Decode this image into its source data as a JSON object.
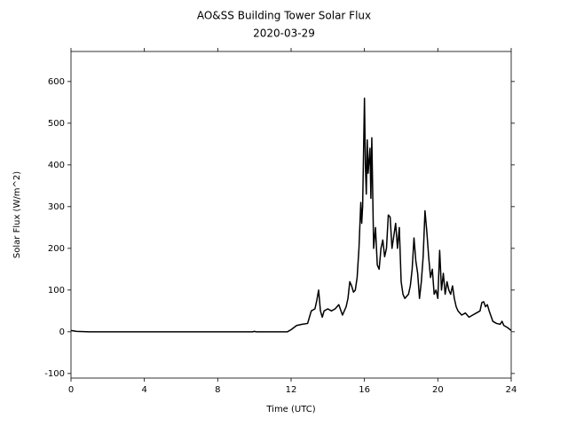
{
  "chart_data": {
    "type": "line",
    "title": "AO&SS Building Tower Solar Flux",
    "subtitle": "2020-03-29",
    "x_label": "Time (UTC)",
    "y_label": "Solar Flux (W/m^2)",
    "xlim": [
      0,
      24
    ],
    "xticks": [
      0,
      4,
      8,
      12,
      16,
      20,
      24
    ],
    "ylim": [
      -111,
      672
    ],
    "yticks": [
      -100,
      0,
      100,
      200,
      300,
      400,
      500,
      600
    ],
    "grid": false,
    "series": [
      {
        "name": "Solar Flux",
        "color": "#000000",
        "x": [
          0,
          0.3,
          1,
          3,
          5,
          7,
          9,
          9.9,
          10,
          10.1,
          11,
          11.8,
          12,
          12.3,
          12.6,
          12.9,
          13,
          13.1,
          13.3,
          13.4,
          13.5,
          13.6,
          13.7,
          13.8,
          14,
          14.2,
          14.4,
          14.6,
          14.8,
          15,
          15.1,
          15.2,
          15.3,
          15.4,
          15.5,
          15.6,
          15.7,
          15.8,
          15.85,
          15.9,
          16,
          16.05,
          16.1,
          16.15,
          16.2,
          16.3,
          16.35,
          16.4,
          16.5,
          16.6,
          16.7,
          16.8,
          16.9,
          17,
          17.1,
          17.2,
          17.3,
          17.4,
          17.5,
          17.6,
          17.7,
          17.8,
          17.9,
          18,
          18.1,
          18.2,
          18.4,
          18.5,
          18.6,
          18.7,
          18.8,
          18.9,
          19,
          19.1,
          19.2,
          19.3,
          19.4,
          19.5,
          19.6,
          19.7,
          19.8,
          19.9,
          20,
          20.1,
          20.2,
          20.3,
          20.4,
          20.5,
          20.6,
          20.7,
          20.8,
          20.9,
          21,
          21.1,
          21.3,
          21.5,
          21.7,
          21.9,
          22.1,
          22.3,
          22.4,
          22.5,
          22.6,
          22.7,
          22.8,
          23,
          23.2,
          23.4,
          23.5,
          23.6,
          23.8,
          24
        ],
        "values": [
          3,
          1,
          0,
          0,
          0,
          0,
          0,
          0,
          1,
          0,
          0,
          0,
          5,
          15,
          18,
          20,
          35,
          50,
          55,
          75,
          100,
          50,
          35,
          50,
          55,
          50,
          55,
          65,
          40,
          60,
          80,
          120,
          110,
          95,
          100,
          130,
          200,
          310,
          260,
          300,
          560,
          400,
          330,
          460,
          380,
          440,
          320,
          465,
          200,
          250,
          160,
          150,
          200,
          220,
          180,
          200,
          280,
          275,
          200,
          230,
          260,
          200,
          250,
          120,
          90,
          80,
          90,
          110,
          150,
          225,
          170,
          140,
          80,
          120,
          180,
          290,
          240,
          180,
          130,
          150,
          90,
          100,
          80,
          195,
          100,
          140,
          90,
          120,
          100,
          90,
          110,
          80,
          60,
          50,
          40,
          45,
          35,
          40,
          45,
          50,
          70,
          72,
          60,
          65,
          50,
          25,
          20,
          18,
          25,
          15,
          10,
          3
        ]
      }
    ]
  }
}
